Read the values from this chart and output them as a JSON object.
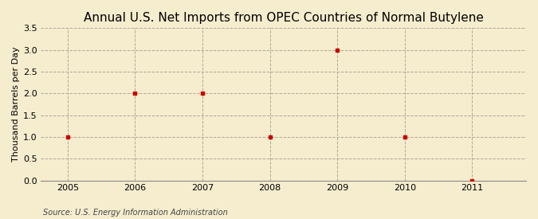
{
  "title": "Annual U.S. Net Imports from OPEC Countries of Normal Butylene",
  "ylabel": "Thousand Barrels per Day",
  "source": "Source: U.S. Energy Information Administration",
  "xlim": [
    2004.6,
    2011.8
  ],
  "ylim": [
    0.0,
    3.5
  ],
  "yticks": [
    0.0,
    0.5,
    1.0,
    1.5,
    2.0,
    2.5,
    3.0,
    3.5
  ],
  "xticks": [
    2005,
    2006,
    2007,
    2008,
    2009,
    2010,
    2011
  ],
  "x_data": [
    2005,
    2006,
    2007,
    2008,
    2009,
    2010,
    2011
  ],
  "y_data": [
    1.0,
    2.0,
    2.0,
    1.0,
    3.0,
    1.0,
    0.0
  ],
  "marker_color": "#cc0000",
  "marker": "s",
  "marker_size": 3.5,
  "background_color": "#f5edce",
  "grid_color": "#b0a898",
  "title_fontsize": 11,
  "label_fontsize": 8,
  "tick_fontsize": 8,
  "source_fontsize": 7
}
